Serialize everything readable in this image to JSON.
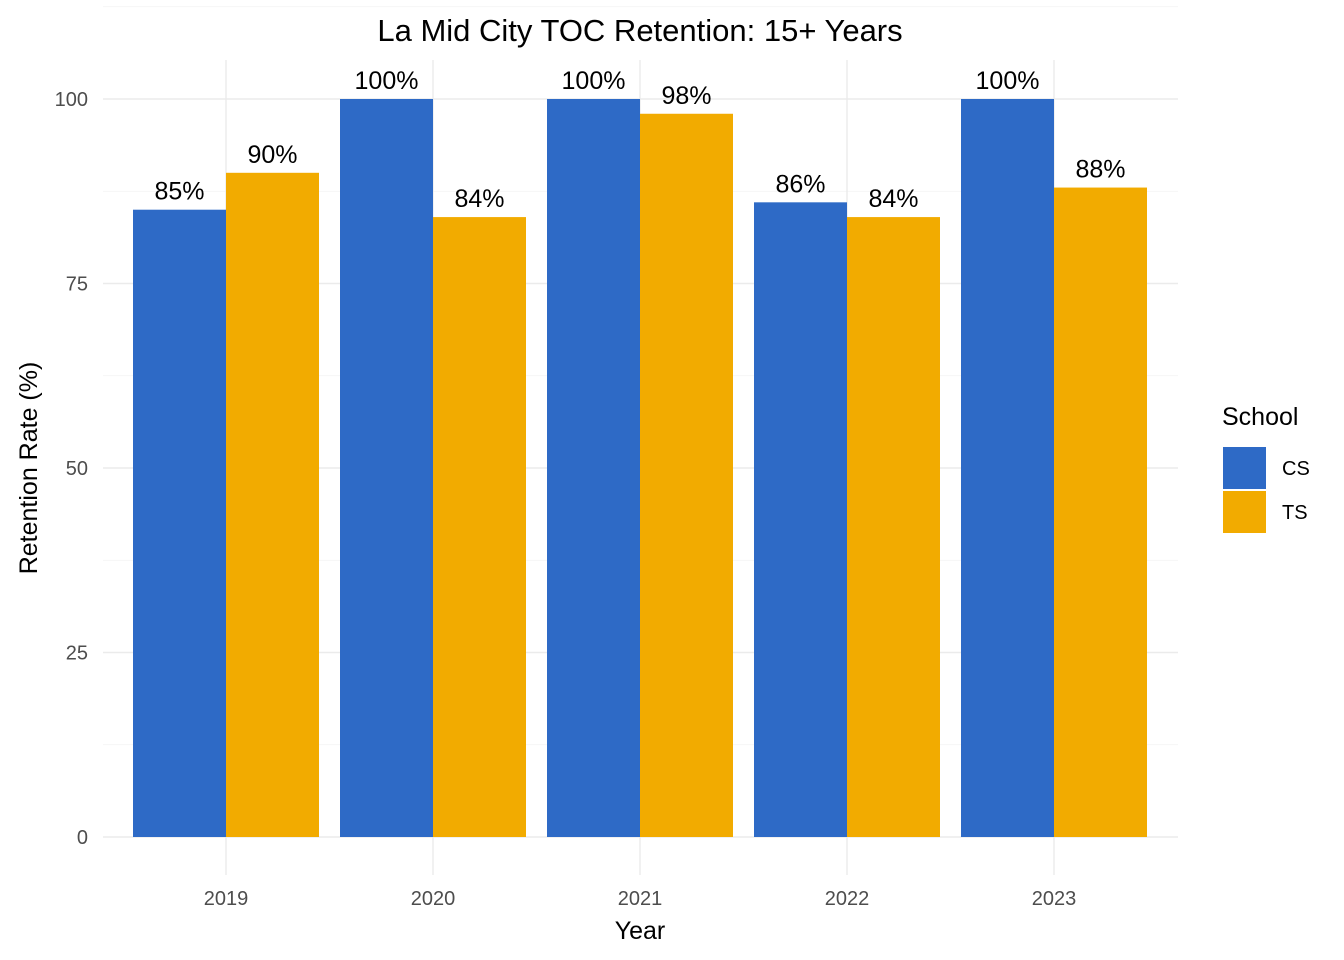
{
  "chart_data": {
    "type": "bar",
    "title": "La Mid City TOC Retention: 15+ Years",
    "xlabel": "Year",
    "ylabel": "Retention Rate (%)",
    "categories": [
      "2019",
      "2020",
      "2021",
      "2022",
      "2023"
    ],
    "series": [
      {
        "name": "CS",
        "color": "#2E6AC6",
        "values": [
          85,
          100,
          100,
          86,
          100
        ],
        "labels": [
          "85%",
          "100%",
          "100%",
          "86%",
          "100%"
        ]
      },
      {
        "name": "TS",
        "color": "#F2AB00",
        "values": [
          90,
          84,
          98,
          84,
          88
        ],
        "labels": [
          "90%",
          "84%",
          "98%",
          "84%",
          "88%"
        ]
      }
    ],
    "ylim": [
      0,
      100
    ],
    "yticks": [
      0,
      25,
      50,
      75,
      100
    ],
    "ytick_labels": [
      "0",
      "25",
      "50",
      "75",
      "100"
    ],
    "grid": true,
    "legend": {
      "title": "School",
      "position": "right"
    }
  }
}
